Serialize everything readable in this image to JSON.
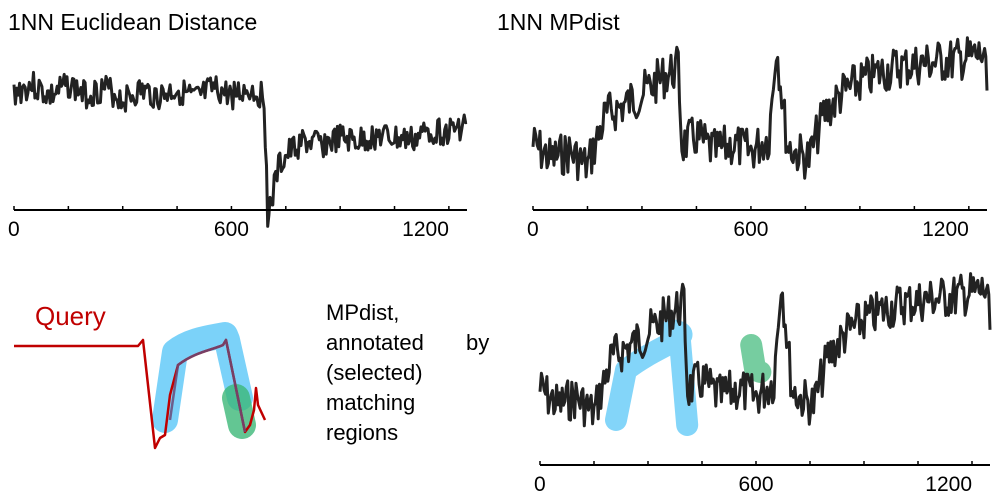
{
  "colors": {
    "series": "#222222",
    "query": "#c00000",
    "highlight_blue": "#4fc3f7",
    "highlight_green": "#3cb878",
    "axis": "#000000"
  },
  "annotation": {
    "query_label": "Query",
    "text_lines": [
      "MPdist,",
      "annotated",
      "by",
      "(selected)",
      "matching",
      "regions"
    ]
  },
  "chart_data": [
    {
      "type": "line",
      "title": "1NN Euclidean  Distance",
      "xlabel": "",
      "ylabel": "",
      "xlim": [
        0,
        1250
      ],
      "xticks": [
        0,
        600,
        1200
      ],
      "xtick_labels": [
        "0",
        "600",
        "1200"
      ],
      "grid": false,
      "series": [
        {
          "x": [
            0,
            50,
            100,
            150,
            200,
            250,
            300,
            350,
            400,
            450,
            500,
            550,
            600,
            650,
            690,
            700,
            710,
            730,
            760,
            800,
            850,
            900,
            950,
            1000,
            1050,
            1100,
            1150,
            1200,
            1250
          ],
          "y": [
            0.75,
            0.8,
            0.72,
            0.8,
            0.73,
            0.78,
            0.7,
            0.76,
            0.72,
            0.77,
            0.7,
            0.77,
            0.73,
            0.77,
            0.72,
            -0.05,
            0.02,
            0.25,
            0.35,
            0.42,
            0.4,
            0.44,
            0.42,
            0.46,
            0.44,
            0.43,
            0.5,
            0.48,
            0.55
          ]
        }
      ]
    },
    {
      "type": "line",
      "title": "1NN MPdist",
      "xlabel": "",
      "ylabel": "",
      "xlim": [
        0,
        1250
      ],
      "xticks": [
        0,
        600,
        1200
      ],
      "xtick_labels": [
        "0",
        "600",
        "1200"
      ],
      "grid": false,
      "series": [
        {
          "x": [
            0,
            50,
            100,
            150,
            200,
            250,
            300,
            350,
            380,
            400,
            410,
            450,
            500,
            550,
            600,
            650,
            670,
            700,
            720,
            760,
            800,
            850,
            900,
            950,
            1000,
            1050,
            1100,
            1150,
            1200,
            1240,
            1250
          ],
          "y": [
            0.35,
            0.25,
            0.3,
            0.2,
            0.55,
            0.62,
            0.7,
            0.8,
            0.85,
            0.88,
            0.35,
            0.4,
            0.3,
            0.35,
            0.3,
            0.4,
            1.05,
            0.35,
            0.3,
            0.25,
            0.55,
            0.7,
            0.78,
            0.84,
            0.88,
            0.9,
            0.92,
            0.93,
            0.95,
            0.97,
            0.72
          ]
        }
      ]
    },
    {
      "type": "line",
      "title": "",
      "xlabel": "",
      "ylabel": "",
      "xlim": [
        0,
        1250
      ],
      "xticks": [
        0,
        600,
        1200
      ],
      "xtick_labels": [
        "0",
        "600",
        "1200"
      ],
      "grid": false,
      "series": [
        {
          "x": [
            0,
            50,
            100,
            150,
            200,
            250,
            300,
            350,
            380,
            400,
            410,
            450,
            500,
            550,
            600,
            650,
            670,
            700,
            720,
            760,
            800,
            850,
            900,
            950,
            1000,
            1050,
            1100,
            1150,
            1200,
            1240,
            1250
          ],
          "y": [
            0.35,
            0.25,
            0.3,
            0.2,
            0.55,
            0.62,
            0.7,
            0.8,
            0.85,
            0.88,
            0.35,
            0.4,
            0.3,
            0.35,
            0.3,
            0.4,
            1.05,
            0.35,
            0.3,
            0.25,
            0.55,
            0.7,
            0.78,
            0.84,
            0.88,
            0.9,
            0.92,
            0.93,
            0.95,
            0.97,
            0.72
          ]
        }
      ],
      "highlighted_regions": [
        {
          "color": "blue",
          "x": [
            200,
            420
          ]
        },
        {
          "color": "green",
          "x": [
            570,
            640
          ]
        }
      ]
    }
  ]
}
